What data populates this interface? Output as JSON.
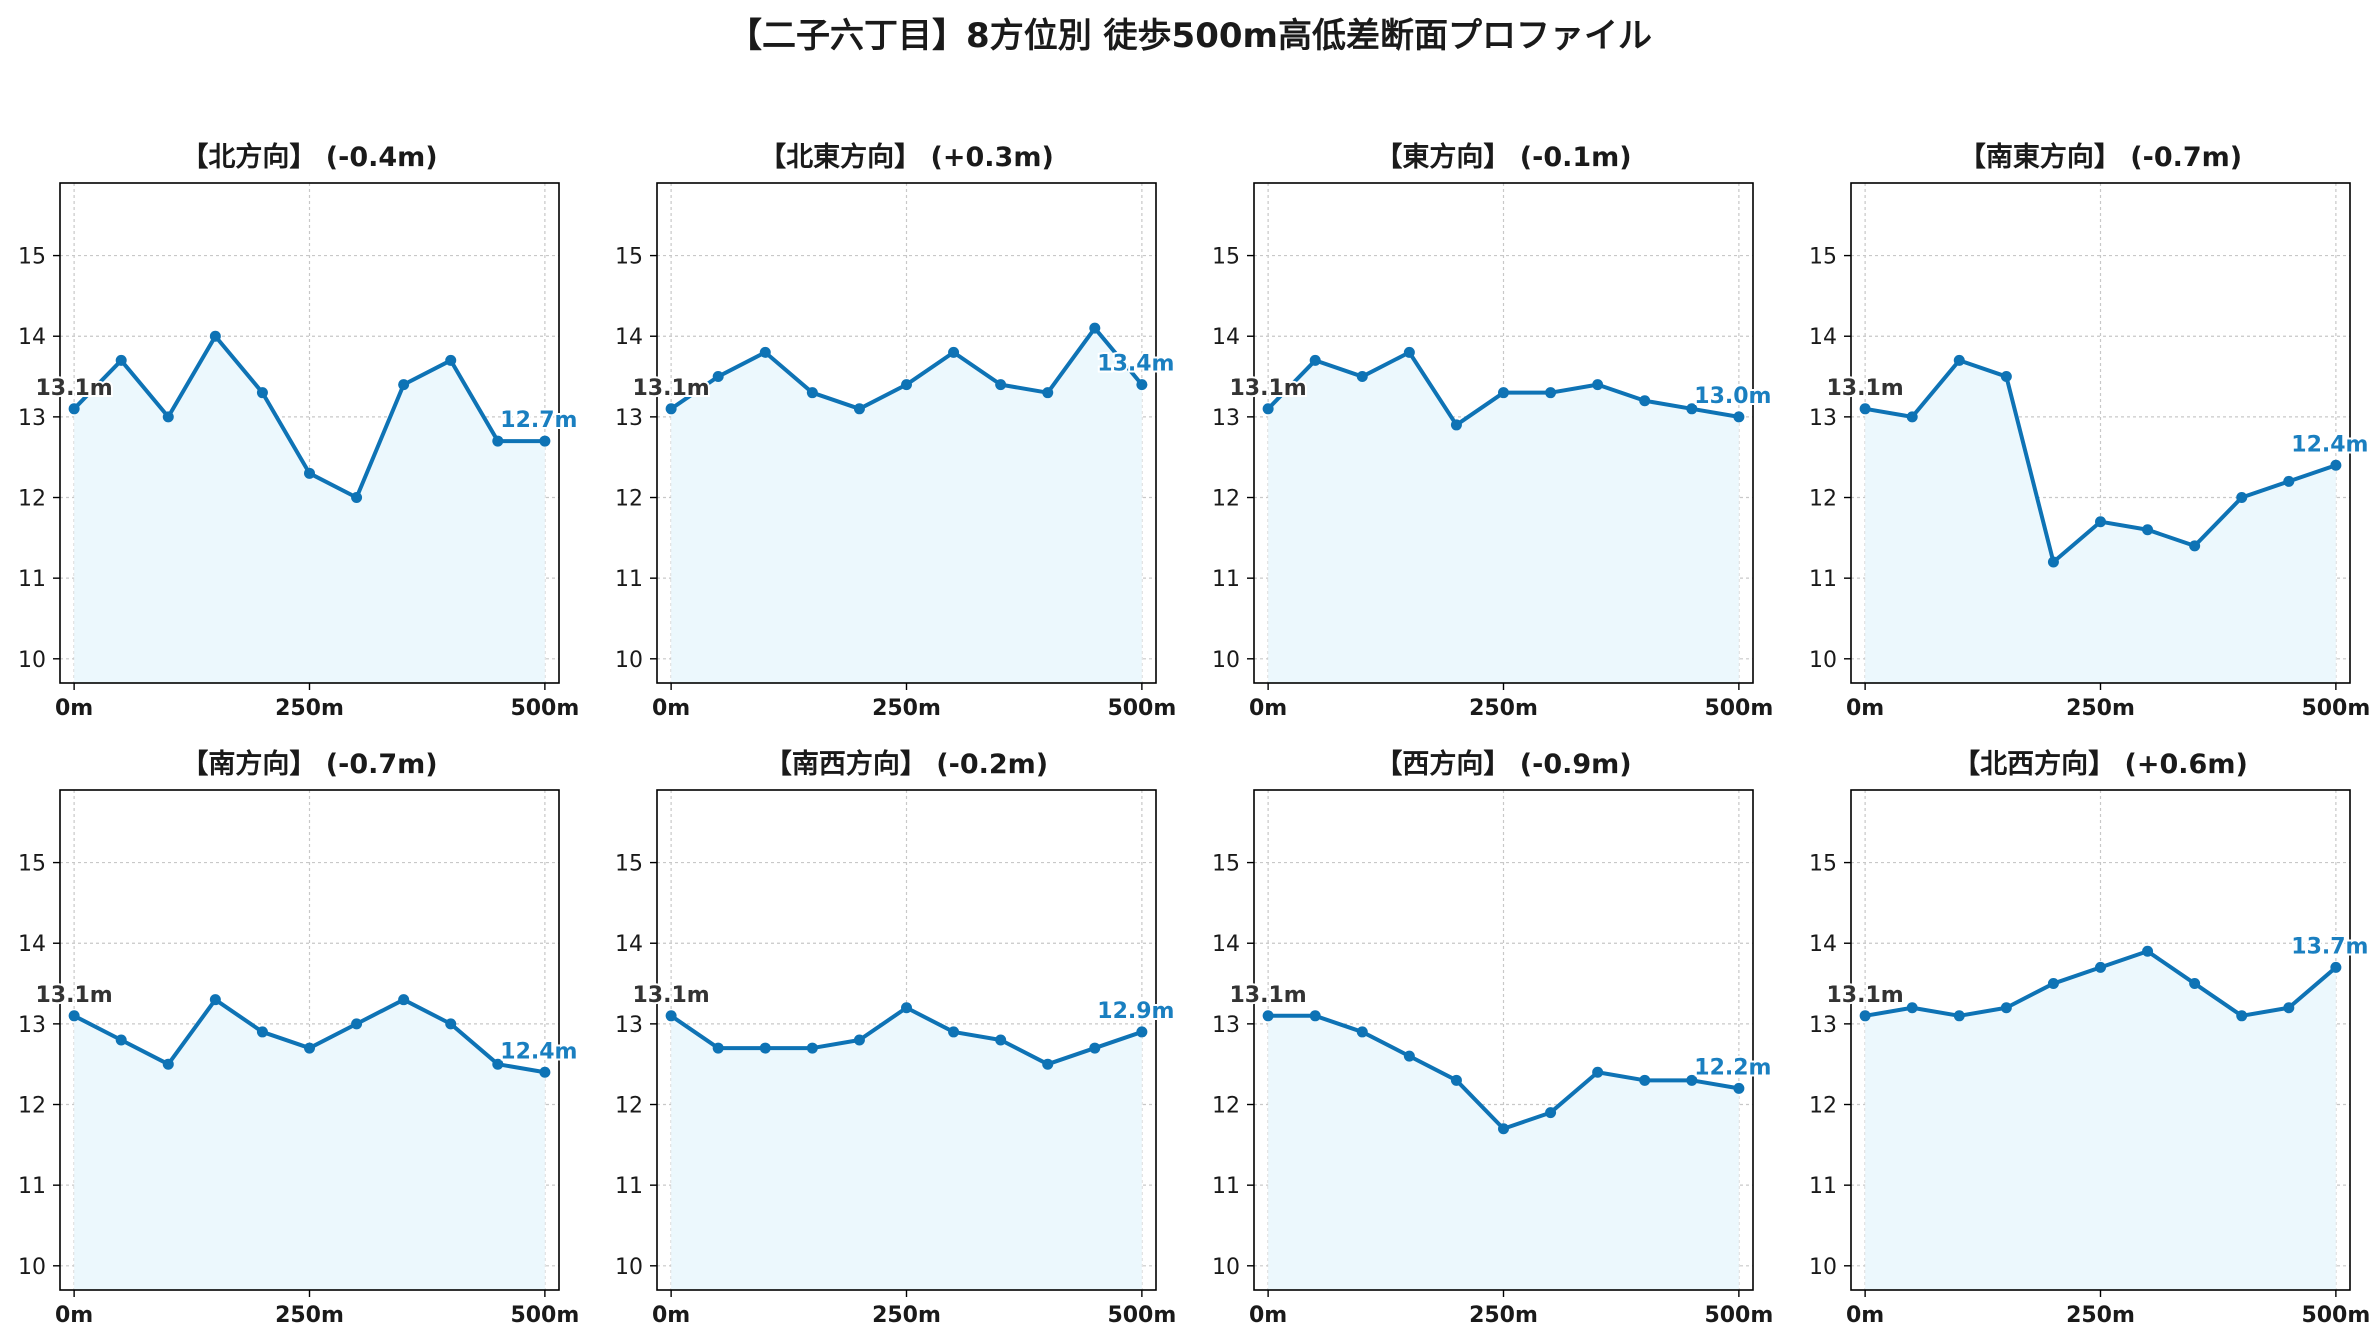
{
  "title": "【二子六丁目】8方位別 徒歩500m高低差断面プロファイル",
  "colors": {
    "line": "#0e73b5",
    "fill": "#ecf8fd",
    "start_label": "#333333",
    "end_label": "#1a7fc0",
    "grid": "#c8c8c8"
  },
  "chart_data": [
    {
      "type": "line",
      "title": "【北方向】 (-0.4m)",
      "x": [
        0,
        50,
        100,
        150,
        200,
        250,
        300,
        350,
        400,
        450,
        500
      ],
      "y": [
        13.1,
        13.7,
        13.0,
        14.0,
        13.3,
        12.3,
        12.0,
        13.4,
        13.7,
        12.7,
        12.7
      ],
      "start_label": "13.1m",
      "end_label": "12.7m",
      "xlim": [
        -15,
        515
      ],
      "ylim": [
        9.7,
        15.9
      ],
      "xticks": [
        0,
        250,
        500
      ],
      "xtick_labels": [
        "0m",
        "250m",
        "500m"
      ],
      "yticks": [
        10,
        11,
        12,
        13,
        14,
        15
      ],
      "ytick_labels": [
        "10",
        "11",
        "12",
        "13",
        "14",
        "15"
      ]
    },
    {
      "type": "line",
      "title": "【北東方向】 (+0.3m)",
      "x": [
        0,
        50,
        100,
        150,
        200,
        250,
        300,
        350,
        400,
        450,
        500
      ],
      "y": [
        13.1,
        13.5,
        13.8,
        13.3,
        13.1,
        13.4,
        13.8,
        13.4,
        13.3,
        14.1,
        13.4
      ],
      "start_label": "13.1m",
      "end_label": "13.4m",
      "xlim": [
        -15,
        515
      ],
      "ylim": [
        9.7,
        15.9
      ],
      "xticks": [
        0,
        250,
        500
      ],
      "xtick_labels": [
        "0m",
        "250m",
        "500m"
      ],
      "yticks": [
        10,
        11,
        12,
        13,
        14,
        15
      ],
      "ytick_labels": [
        "10",
        "11",
        "12",
        "13",
        "14",
        "15"
      ]
    },
    {
      "type": "line",
      "title": "【東方向】 (-0.1m)",
      "x": [
        0,
        50,
        100,
        150,
        200,
        250,
        300,
        350,
        400,
        450,
        500
      ],
      "y": [
        13.1,
        13.7,
        13.5,
        13.8,
        12.9,
        13.3,
        13.3,
        13.4,
        13.2,
        13.1,
        13.0
      ],
      "start_label": "13.1m",
      "end_label": "13.0m",
      "xlim": [
        -15,
        515
      ],
      "ylim": [
        9.7,
        15.9
      ],
      "xticks": [
        0,
        250,
        500
      ],
      "xtick_labels": [
        "0m",
        "250m",
        "500m"
      ],
      "yticks": [
        10,
        11,
        12,
        13,
        14,
        15
      ],
      "ytick_labels": [
        "10",
        "11",
        "12",
        "13",
        "14",
        "15"
      ]
    },
    {
      "type": "line",
      "title": "【南東方向】 (-0.7m)",
      "x": [
        0,
        50,
        100,
        150,
        200,
        250,
        300,
        350,
        400,
        450,
        500
      ],
      "y": [
        13.1,
        13.0,
        13.7,
        13.5,
        11.2,
        11.7,
        11.6,
        11.4,
        12.0,
        12.2,
        12.4
      ],
      "start_label": "13.1m",
      "end_label": "12.4m",
      "xlim": [
        -15,
        515
      ],
      "ylim": [
        9.7,
        15.9
      ],
      "xticks": [
        0,
        250,
        500
      ],
      "xtick_labels": [
        "0m",
        "250m",
        "500m"
      ],
      "yticks": [
        10,
        11,
        12,
        13,
        14,
        15
      ],
      "ytick_labels": [
        "10",
        "11",
        "12",
        "13",
        "14",
        "15"
      ]
    },
    {
      "type": "line",
      "title": "【南方向】 (-0.7m)",
      "x": [
        0,
        50,
        100,
        150,
        200,
        250,
        300,
        350,
        400,
        450,
        500
      ],
      "y": [
        13.1,
        12.8,
        12.5,
        13.3,
        12.9,
        12.7,
        13.0,
        13.3,
        13.0,
        12.5,
        12.4
      ],
      "start_label": "13.1m",
      "end_label": "12.4m",
      "xlim": [
        -15,
        515
      ],
      "ylim": [
        9.7,
        15.9
      ],
      "xticks": [
        0,
        250,
        500
      ],
      "xtick_labels": [
        "0m",
        "250m",
        "500m"
      ],
      "yticks": [
        10,
        11,
        12,
        13,
        14,
        15
      ],
      "ytick_labels": [
        "10",
        "11",
        "12",
        "13",
        "14",
        "15"
      ]
    },
    {
      "type": "line",
      "title": "【南西方向】 (-0.2m)",
      "x": [
        0,
        50,
        100,
        150,
        200,
        250,
        300,
        350,
        400,
        450,
        500
      ],
      "y": [
        13.1,
        12.7,
        12.7,
        12.7,
        12.8,
        13.2,
        12.9,
        12.8,
        12.5,
        12.7,
        12.9
      ],
      "start_label": "13.1m",
      "end_label": "12.9m",
      "xlim": [
        -15,
        515
      ],
      "ylim": [
        9.7,
        15.9
      ],
      "xticks": [
        0,
        250,
        500
      ],
      "xtick_labels": [
        "0m",
        "250m",
        "500m"
      ],
      "yticks": [
        10,
        11,
        12,
        13,
        14,
        15
      ],
      "ytick_labels": [
        "10",
        "11",
        "12",
        "13",
        "14",
        "15"
      ]
    },
    {
      "type": "line",
      "title": "【西方向】 (-0.9m)",
      "x": [
        0,
        50,
        100,
        150,
        200,
        250,
        300,
        350,
        400,
        450,
        500
      ],
      "y": [
        13.1,
        13.1,
        12.9,
        12.6,
        12.3,
        11.7,
        11.9,
        12.4,
        12.3,
        12.3,
        12.2
      ],
      "start_label": "13.1m",
      "end_label": "12.2m",
      "xlim": [
        -15,
        515
      ],
      "ylim": [
        9.7,
        15.9
      ],
      "xticks": [
        0,
        250,
        500
      ],
      "xtick_labels": [
        "0m",
        "250m",
        "500m"
      ],
      "yticks": [
        10,
        11,
        12,
        13,
        14,
        15
      ],
      "ytick_labels": [
        "10",
        "11",
        "12",
        "13",
        "14",
        "15"
      ]
    },
    {
      "type": "line",
      "title": "【北西方向】 (+0.6m)",
      "x": [
        0,
        50,
        100,
        150,
        200,
        250,
        300,
        350,
        400,
        450,
        500
      ],
      "y": [
        13.1,
        13.2,
        13.1,
        13.2,
        13.5,
        13.7,
        13.9,
        13.5,
        13.1,
        13.2,
        13.7
      ],
      "start_label": "13.1m",
      "end_label": "13.7m",
      "xlim": [
        -15,
        515
      ],
      "ylim": [
        9.7,
        15.9
      ],
      "xticks": [
        0,
        250,
        500
      ],
      "xtick_labels": [
        "0m",
        "250m",
        "500m"
      ],
      "yticks": [
        10,
        11,
        12,
        13,
        14,
        15
      ],
      "ytick_labels": [
        "10",
        "11",
        "12",
        "13",
        "14",
        "15"
      ]
    }
  ]
}
